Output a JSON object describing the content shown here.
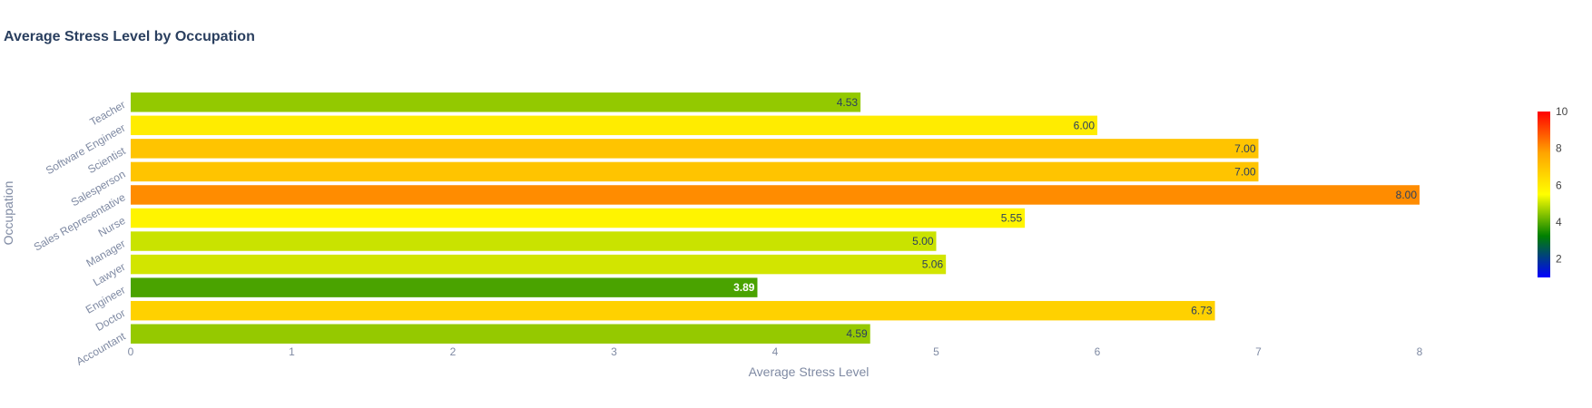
{
  "chart_data": {
    "type": "bar",
    "orientation": "horizontal",
    "title": "Average Stress Level by Occupation",
    "xlabel": "Average Stress Level",
    "ylabel": "Occupation",
    "xlim": [
      0,
      8.8
    ],
    "x_ticks": [
      "0",
      "1",
      "2",
      "3",
      "4",
      "5",
      "6",
      "7",
      "8"
    ],
    "categories": [
      "Accountant",
      "Doctor",
      "Engineer",
      "Lawyer",
      "Manager",
      "Nurse",
      "Sales Representative",
      "Salesperson",
      "Scientist",
      "Software Engineer",
      "Teacher"
    ],
    "values": [
      4.59,
      6.73,
      3.89,
      5.06,
      5.0,
      5.55,
      8.0,
      7.0,
      7.0,
      6.0,
      4.53
    ],
    "value_labels": [
      "4.59",
      "6.73",
      "3.89",
      "5.06",
      "5.00",
      "5.55",
      "8.00",
      "7.00",
      "7.00",
      "6.00",
      "4.53"
    ],
    "bar_colors": [
      "#95c900",
      "#ffd100",
      "#4aa300",
      "#d2e500",
      "#c9e300",
      "#fff400",
      "#ff8c00",
      "#ffc400",
      "#ffc400",
      "#ffec00",
      "#93c900"
    ],
    "colorscale": [
      "#0000ff",
      "#008000",
      "#ffff00",
      "#ffa500",
      "#ff0000"
    ],
    "colorbar": {
      "range": [
        1,
        10
      ],
      "ticks": [
        "2",
        "4",
        "6",
        "8",
        "10"
      ]
    },
    "grid": false,
    "legend": "none"
  }
}
